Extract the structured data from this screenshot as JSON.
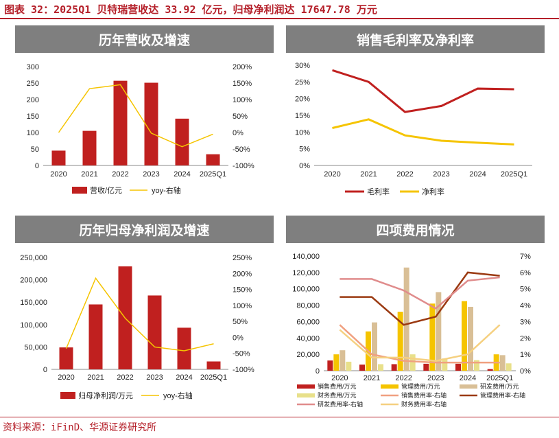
{
  "figure_title": "图表 32：2025Q1 贝特瑞营收达 33.92 亿元，归母净利润达 17647.78 万元",
  "source": "资料来源：iFinD、华源证券研究所",
  "colors": {
    "bar_red": "#c0201f",
    "line_yellow": "#f5c400",
    "net_margin": "#f5c400",
    "gross_margin": "#c0201f"
  },
  "panels": [
    {
      "title": "历年营收及增速"
    },
    {
      "title": "销售毛利率及净利率"
    },
    {
      "title": "历年归母净利润及增速"
    },
    {
      "title": "四项费用情况"
    }
  ],
  "chart_data": [
    {
      "type": "bar",
      "categories": [
        "2020",
        "2021",
        "2022",
        "2023",
        "2024",
        "2025Q1"
      ],
      "series": [
        {
          "name": "营收/亿元",
          "type": "bar",
          "axis": "left",
          "values": [
            45,
            105,
            257,
            251,
            142,
            34
          ]
        },
        {
          "name": "yoy-右轴",
          "type": "line",
          "axis": "right",
          "values": [
            0,
            133,
            145,
            -2,
            -43,
            -5
          ]
        }
      ],
      "left_axis": {
        "ticks": [
          "0",
          "50",
          "100",
          "150",
          "200",
          "250",
          "300"
        ],
        "min": 0,
        "max": 300
      },
      "right_axis": {
        "ticks": [
          "-100%",
          "-50%",
          "0%",
          "50%",
          "100%",
          "150%",
          "200%"
        ],
        "min": -100,
        "max": 200
      },
      "legend": "bottom"
    },
    {
      "type": "line",
      "categories": [
        "2020",
        "2021",
        "2022",
        "2023",
        "2024",
        "2025Q1"
      ],
      "series": [
        {
          "name": "毛利率",
          "values": [
            28.5,
            25,
            16,
            17.8,
            23,
            22.8
          ]
        },
        {
          "name": "净利率",
          "values": [
            11.2,
            13.8,
            9,
            7.4,
            6.8,
            6.3
          ]
        }
      ],
      "left_axis": {
        "ticks": [
          "0%",
          "5%",
          "10%",
          "15%",
          "20%",
          "25%",
          "30%"
        ],
        "min": 0,
        "max": 30
      },
      "legend": "bottom"
    },
    {
      "type": "bar",
      "categories": [
        "2020",
        "2021",
        "2022",
        "2023",
        "2024",
        "2025Q1"
      ],
      "series": [
        {
          "name": "归母净利润/万元",
          "type": "bar",
          "axis": "left",
          "values": [
            49000,
            145000,
            230000,
            165000,
            93000,
            17648
          ]
        },
        {
          "name": "yoy-右轴",
          "type": "line",
          "axis": "right",
          "values": [
            -35,
            185,
            60,
            -30,
            -42,
            -20
          ]
        }
      ],
      "left_axis": {
        "ticks": [
          "0",
          "50,000",
          "100,000",
          "150,000",
          "200,000",
          "250,000"
        ],
        "min": 0,
        "max": 250000
      },
      "right_axis": {
        "ticks": [
          "-100%",
          "-50%",
          "0%",
          "50%",
          "100%",
          "150%",
          "200%",
          "250%"
        ],
        "min": -100,
        "max": 250
      },
      "legend": "bottom"
    },
    {
      "type": "bar",
      "categories": [
        "2020",
        "2021",
        "2022",
        "2023",
        "2024",
        "2025Q1"
      ],
      "series": [
        {
          "name": "销售费用/万元",
          "type": "bar",
          "axis": "left",
          "color": "#c0201f",
          "values": [
            12500,
            7500,
            8000,
            8500,
            8500,
            2000
          ]
        },
        {
          "name": "管理费用/万元",
          "type": "bar",
          "axis": "left",
          "color": "#f5c400",
          "values": [
            20000,
            48000,
            72000,
            82000,
            85000,
            20000
          ]
        },
        {
          "name": "研发费用/万元",
          "type": "bar",
          "axis": "left",
          "color": "#d9bf96",
          "values": [
            25000,
            59000,
            126000,
            96000,
            78000,
            19000
          ]
        },
        {
          "name": "财务费用/万元",
          "type": "bar",
          "axis": "left",
          "color": "#e8e08a",
          "values": [
            11000,
            8000,
            20000,
            15000,
            13000,
            9000
          ]
        },
        {
          "name": "销售费用率-右轴",
          "type": "line",
          "axis": "right",
          "color": "#f0a080",
          "values": [
            2.8,
            1.0,
            0.6,
            0.5,
            0.5,
            0.5
          ]
        },
        {
          "name": "管理费用率-右轴",
          "type": "line",
          "axis": "right",
          "color": "#9b3a12",
          "values": [
            4.5,
            4.5,
            2.8,
            3.3,
            6.0,
            5.8
          ]
        },
        {
          "name": "研发费用率-右轴",
          "type": "line",
          "axis": "right",
          "color": "#e08c8c",
          "values": [
            5.6,
            5.6,
            4.9,
            3.8,
            5.5,
            5.7
          ]
        },
        {
          "name": "财务费用率-右轴",
          "type": "line",
          "axis": "right",
          "color": "#f5d080",
          "values": [
            2.5,
            0.8,
            0.8,
            0.6,
            1.0,
            2.8
          ]
        }
      ],
      "left_axis": {
        "ticks": [
          "0",
          "20,000",
          "40,000",
          "60,000",
          "80,000",
          "100,000",
          "120,000",
          "140,000"
        ],
        "min": 0,
        "max": 140000
      },
      "right_axis": {
        "ticks": [
          "0%",
          "1%",
          "2%",
          "3%",
          "4%",
          "5%",
          "6%",
          "7%"
        ],
        "min": 0,
        "max": 7
      },
      "legend": "bottom"
    }
  ]
}
